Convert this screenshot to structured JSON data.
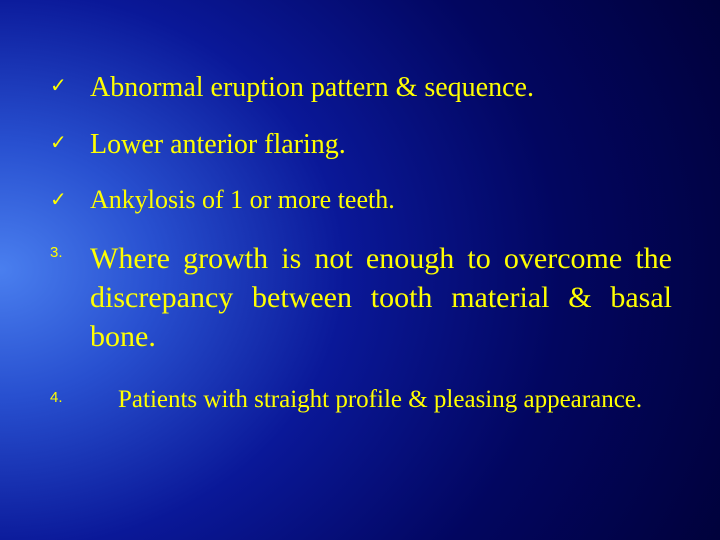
{
  "colors": {
    "text": "#ffff00",
    "bg_gradient_inner": "#4a7fef",
    "bg_gradient_mid1": "#2850d0",
    "bg_gradient_mid2": "#0a1898",
    "bg_gradient_mid3": "#020660",
    "bg_gradient_outer": "#000030"
  },
  "typography": {
    "font_family": "Times New Roman",
    "bullet_check_size_pt": 15,
    "bullet_num_size_pt": 11,
    "sz1_pt": 21,
    "sz2_pt": 19,
    "sz3_pt": 22,
    "sz4_pt": 19
  },
  "items": [
    {
      "bullet_type": "check",
      "bullet": "✓",
      "text": "Abnormal eruption pattern & sequence.",
      "size_class": "sz1"
    },
    {
      "bullet_type": "check",
      "bullet": "✓",
      "text": "Lower anterior flaring.",
      "size_class": "sz1"
    },
    {
      "bullet_type": "check",
      "bullet": "✓",
      "text": "Ankylosis of 1 or more teeth.",
      "size_class": "sz2"
    },
    {
      "bullet_type": "number",
      "bullet": "3.",
      "text": "Where growth is not enough to overcome the discrepancy between tooth material & basal bone.",
      "size_class": "sz3"
    },
    {
      "bullet_type": "number",
      "bullet": "4.",
      "text": "Patients with straight profile & pleasing appearance.",
      "size_class": "sz4",
      "indent": true
    }
  ]
}
